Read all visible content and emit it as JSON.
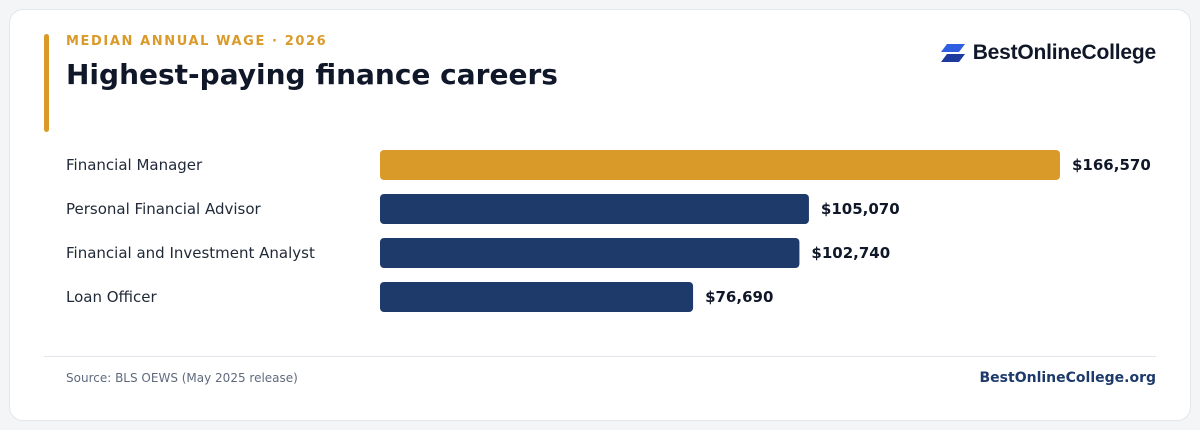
{
  "header": {
    "eyebrow": "MEDIAN ANNUAL WAGE · 2026",
    "title": "Highest-paying finance careers"
  },
  "logo": {
    "text": "BestOnlineCollege",
    "icon": "stacked-parallelogram-logo-icon"
  },
  "footer": {
    "source": "Source: BLS OEWS (May 2025 release)",
    "site": "BestOnlineCollege.org"
  },
  "colors": {
    "accent": "#da9a29",
    "highlight_bar": "#da9a29",
    "bar": "#1d3a6b",
    "logo_blue": "#2f5fe0"
  },
  "chart_data": {
    "type": "bar",
    "orientation": "horizontal",
    "categories": [
      "Financial Manager",
      "Personal Financial Advisor",
      "Financial and Investment Analyst",
      "Loan Officer"
    ],
    "values": [
      166570,
      105070,
      102740,
      76690
    ],
    "value_labels": [
      "$166,570",
      "$105,070",
      "$102,740",
      "$76,690"
    ],
    "highlight_index": 0,
    "xlim": [
      0,
      166570
    ],
    "grid": false,
    "legend": "none"
  }
}
